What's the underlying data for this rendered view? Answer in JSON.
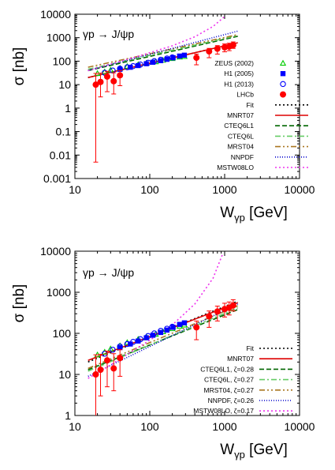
{
  "chart_data": [
    {
      "type": "scatter",
      "title": "γp → J/ψp",
      "xlabel": "W",
      "xlabel_sub": "γp",
      "xlabel_unit": " [GeV]",
      "ylabel": "σ [nb]",
      "xscale": "log",
      "yscale": "log",
      "xlim": [
        10,
        10000
      ],
      "ylim": [
        0.001,
        10000
      ],
      "xticks": [
        "10",
        "100",
        "1000",
        "10000"
      ],
      "yticks": [
        "0.001",
        "0.01",
        "0.1",
        "1",
        "10",
        "100",
        "1000",
        "10000"
      ],
      "legend_placement": "right",
      "series": [
        {
          "name": "ZEUS (2002)",
          "kind": "points",
          "marker": "triangle-open",
          "color": "#00cc00",
          "x": [
            20,
            25,
            30,
            40,
            50,
            70,
            90,
            120,
            150,
            200,
            250,
            290
          ],
          "y": [
            30,
            35,
            42,
            50,
            60,
            72,
            82,
            95,
            110,
            130,
            150,
            160
          ]
        },
        {
          "name": "H1 (2005)",
          "kind": "points",
          "marker": "square-filled",
          "color": "#0000ff",
          "x": [
            40,
            55,
            70,
            90,
            110,
            140,
            170,
            205,
            250,
            290
          ],
          "y": [
            45,
            55,
            65,
            78,
            90,
            105,
            120,
            140,
            165,
            180
          ]
        },
        {
          "name": "H1 (2013)",
          "kind": "points",
          "marker": "circle-open",
          "color": "#0000ff",
          "x": [
            25,
            32,
            40,
            50,
            60,
            75,
            95,
            115,
            140,
            170,
            200
          ],
          "y": [
            32,
            40,
            48,
            55,
            62,
            72,
            86,
            100,
            115,
            130,
            145
          ]
        },
        {
          "name": "LHCb",
          "kind": "points",
          "marker": "circle-filled",
          "color": "#ff0000",
          "x": [
            19,
            22,
            27,
            33,
            40,
            420,
            620,
            800,
            1000,
            1150,
            1300
          ],
          "y": [
            10,
            13,
            22,
            14,
            25,
            140,
            260,
            340,
            390,
            420,
            480
          ],
          "err_low": [
            9.995,
            10,
            17,
            10,
            16,
            70,
            120,
            140,
            140,
            140,
            130
          ],
          "err_high": [
            20,
            18,
            15,
            18,
            15,
            60,
            90,
            120,
            150,
            160,
            180
          ]
        },
        {
          "name": "Fit",
          "kind": "line",
          "dash": "2,3",
          "color": "#000000",
          "x": [
            15,
            1500
          ],
          "y": [
            20,
            610
          ]
        },
        {
          "name": "MNRT07",
          "kind": "line",
          "dash": "",
          "color": "#dd0000",
          "x": [
            15,
            1500
          ],
          "y": [
            20,
            610
          ]
        },
        {
          "name": "CTEQ6L1",
          "kind": "line",
          "dash": "6,3",
          "color": "#006600",
          "x": [
            15,
            1500
          ],
          "y": [
            40,
            1150
          ]
        },
        {
          "name": "CTEQ6L",
          "kind": "line",
          "dash": "7,3,2,3",
          "color": "#66cc66",
          "x": [
            15,
            1500
          ],
          "y": [
            45,
            1250
          ]
        },
        {
          "name": "MRST04",
          "kind": "line",
          "dash": "7,3,2,3,2,3",
          "color": "#aa7722",
          "x": [
            15,
            1500
          ],
          "y": [
            55,
            1350
          ]
        },
        {
          "name": "NNPDF",
          "kind": "line",
          "dash": "1,2",
          "color": "#0000cc",
          "x": [
            15,
            1500
          ],
          "y": [
            40,
            1900
          ]
        },
        {
          "name": "MSTW08LO",
          "kind": "line",
          "dash": "2,3",
          "color": "#ee33ee",
          "x": [
            15,
            30,
            60,
            100,
            200,
            400,
            700,
            1000
          ],
          "y": [
            40,
            75,
            140,
            230,
            450,
            1100,
            3000,
            8000
          ]
        }
      ]
    },
    {
      "type": "scatter",
      "title": "γp → J/ψp",
      "xlabel": "W",
      "xlabel_sub": "γp",
      "xlabel_unit": " [GeV]",
      "ylabel": "σ [nb]",
      "xscale": "log",
      "yscale": "log",
      "xlim": [
        10,
        10000
      ],
      "ylim": [
        1,
        10000
      ],
      "xticks": [
        "10",
        "100",
        "1000",
        "10000"
      ],
      "yticks": [
        "1",
        "10",
        "100",
        "1000",
        "10000"
      ],
      "legend_placement": "bottom-right",
      "series": [
        {
          "name": "ZEUS (2002)",
          "kind": "points",
          "marker": "triangle-open",
          "color": "#00cc00",
          "x": [
            20,
            25,
            30,
            40,
            50,
            70,
            90,
            120,
            150,
            200,
            250,
            290
          ],
          "y": [
            30,
            35,
            42,
            50,
            60,
            72,
            82,
            95,
            110,
            130,
            150,
            160
          ]
        },
        {
          "name": "H1 (2005)",
          "kind": "points",
          "marker": "square-filled",
          "color": "#0000ff",
          "x": [
            40,
            55,
            70,
            90,
            110,
            140,
            170,
            205,
            250,
            290
          ],
          "y": [
            45,
            55,
            65,
            78,
            90,
            105,
            120,
            140,
            165,
            180
          ]
        },
        {
          "name": "H1 (2013)",
          "kind": "points",
          "marker": "circle-open",
          "color": "#0000ff",
          "x": [
            25,
            32,
            40,
            50,
            60,
            75,
            95,
            115,
            140,
            170,
            200
          ],
          "y": [
            32,
            40,
            48,
            55,
            62,
            72,
            86,
            100,
            115,
            130,
            145
          ]
        },
        {
          "name": "LHCb",
          "kind": "points",
          "marker": "circle-filled",
          "color": "#ff0000",
          "x": [
            19,
            22,
            27,
            33,
            40,
            420,
            620,
            800,
            1000,
            1150,
            1300
          ],
          "y": [
            10,
            13,
            22,
            14,
            25,
            140,
            260,
            340,
            390,
            420,
            480
          ],
          "err_low": [
            9.99,
            10,
            17,
            10,
            16,
            70,
            120,
            140,
            140,
            140,
            130
          ],
          "err_high": [
            20,
            18,
            15,
            18,
            15,
            60,
            90,
            120,
            150,
            160,
            180
          ]
        },
        {
          "name": "Fit",
          "kind": "line",
          "dash": "2,3",
          "color": "#000000",
          "x": [
            15,
            1500
          ],
          "y": [
            20,
            610
          ]
        },
        {
          "name": "MNRT07",
          "kind": "line",
          "dash": "",
          "color": "#dd0000",
          "x": [
            15,
            1500
          ],
          "y": [
            22,
            560
          ]
        },
        {
          "name": "CTEQ6L1, ζ=0.28",
          "kind": "line",
          "dash": "6,3",
          "color": "#006600",
          "x": [
            15,
            1500
          ],
          "y": [
            13,
            380
          ]
        },
        {
          "name": "CTEQ6L, ζ=0.27",
          "kind": "line",
          "dash": "7,3,2,3",
          "color": "#66cc66",
          "x": [
            15,
            1500
          ],
          "y": [
            12,
            420
          ]
        },
        {
          "name": "MRST04, ζ=0.27",
          "kind": "line",
          "dash": "7,3,2,3,2,3",
          "color": "#aa7722",
          "x": [
            15,
            1500
          ],
          "y": [
            14,
            470
          ]
        },
        {
          "name": "NNPDF, ζ=0.26",
          "kind": "line",
          "dash": "1,2",
          "color": "#0000cc",
          "x": [
            15,
            1500
          ],
          "y": [
            9,
            520
          ]
        },
        {
          "name": "MSTW08LO, ζ=0.17",
          "kind": "line",
          "dash": "2,3",
          "color": "#ee33ee",
          "x": [
            15,
            30,
            60,
            100,
            200,
            400,
            700,
            950
          ],
          "y": [
            8,
            17,
            38,
            68,
            160,
            520,
            2200,
            9000
          ]
        }
      ]
    }
  ]
}
